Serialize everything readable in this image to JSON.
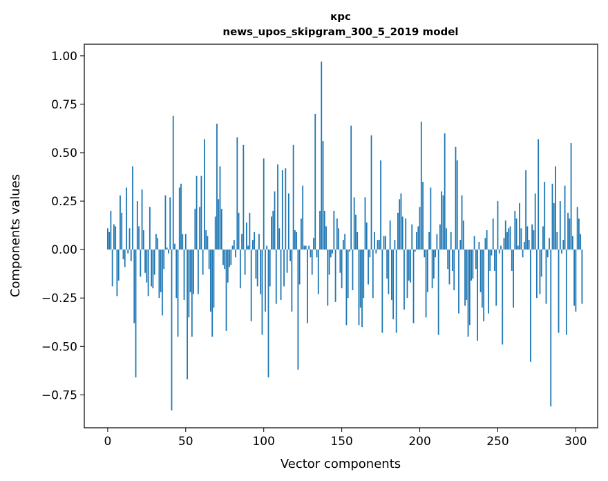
{
  "chart_data": {
    "type": "bar",
    "title_line1": "крс",
    "title_line2": "news_upos_skipgram_300_5_2019 model",
    "xlabel": "Vector components",
    "ylabel": "Components values",
    "xlim": [
      -15,
      314
    ],
    "ylim": [
      -0.92,
      1.06
    ],
    "xticks": [
      0,
      50,
      100,
      150,
      200,
      250,
      300
    ],
    "xtick_labels": [
      "0",
      "50",
      "100",
      "150",
      "200",
      "250",
      "300"
    ],
    "yticks": [
      -0.75,
      -0.5,
      -0.25,
      0.0,
      0.25,
      0.5,
      0.75,
      1.0
    ],
    "ytick_labels": [
      "−0.75",
      "−0.50",
      "−0.25",
      "0.00",
      "0.25",
      "0.50",
      "0.75",
      "1.00"
    ],
    "bar_color": "#1f77b4",
    "values": [
      0.11,
      0.09,
      0.2,
      -0.19,
      0.13,
      0.12,
      -0.24,
      -0.16,
      0.28,
      0.19,
      -0.05,
      -0.09,
      0.32,
      -0.02,
      0.11,
      -0.06,
      0.43,
      -0.38,
      -0.66,
      0.25,
      0.12,
      -0.14,
      0.31,
      0.1,
      -0.12,
      -0.17,
      -0.24,
      0.22,
      -0.19,
      -0.2,
      -0.13,
      0.08,
      0.06,
      -0.25,
      -0.22,
      -0.34,
      -0.1,
      0.28,
      0.01,
      -0.02,
      0.27,
      -0.83,
      0.69,
      0.03,
      -0.25,
      -0.45,
      0.32,
      0.34,
      0.08,
      -0.26,
      0.08,
      -0.67,
      -0.35,
      -0.22,
      -0.45,
      -0.23,
      0.21,
      0.38,
      -0.23,
      0.22,
      0.38,
      -0.13,
      0.57,
      0.1,
      0.07,
      -0.1,
      -0.32,
      -0.45,
      -0.3,
      0.17,
      0.65,
      0.26,
      0.43,
      0.21,
      -0.08,
      -0.1,
      -0.42,
      -0.17,
      -0.09,
      -0.08,
      0.02,
      0.05,
      -0.04,
      0.58,
      0.19,
      -0.2,
      0.08,
      0.54,
      -0.13,
      0.14,
      0.02,
      0.19,
      -0.37,
      0.05,
      0.09,
      -0.15,
      -0.19,
      0.08,
      -0.23,
      -0.44,
      0.47,
      -0.32,
      0.02,
      -0.66,
      -0.19,
      0.17,
      0.2,
      0.3,
      -0.28,
      0.44,
      0.11,
      -0.26,
      0.41,
      -0.19,
      0.42,
      -0.12,
      0.29,
      -0.06,
      -0.32,
      0.54,
      0.1,
      0.09,
      -0.62,
      -0.18,
      0.16,
      0.33,
      0.02,
      0.02,
      -0.38,
      0.02,
      -0.04,
      -0.13,
      0.06,
      0.7,
      -0.04,
      -0.23,
      0.2,
      0.97,
      0.56,
      0.2,
      0.12,
      -0.29,
      -0.13,
      -0.04,
      -0.02,
      0.2,
      -0.27,
      0.16,
      0.11,
      -0.12,
      -0.2,
      0.05,
      0.08,
      -0.39,
      -0.25,
      -0.01,
      0.64,
      -0.21,
      0.27,
      0.18,
      0.09,
      -0.39,
      -0.3,
      -0.4,
      -0.25,
      0.27,
      0.14,
      -0.18,
      -0.04,
      0.59,
      -0.25,
      0.09,
      -0.02,
      0.05,
      0.05,
      0.46,
      -0.43,
      0.07,
      0.07,
      -0.15,
      -0.23,
      0.15,
      -0.26,
      -0.36,
      0.05,
      -0.43,
      0.19,
      0.26,
      0.29,
      0.17,
      -0.31,
      0.16,
      -0.25,
      -0.16,
      -0.17,
      0.13,
      -0.38,
      -0.01,
      0.09,
      0.12,
      0.22,
      0.66,
      0.35,
      -0.04,
      -0.35,
      -0.22,
      0.09,
      0.32,
      -0.2,
      -0.15,
      -0.04,
      0.08,
      -0.44,
      0.13,
      0.3,
      0.28,
      0.6,
      0.11,
      -0.1,
      -0.18,
      0.09,
      -0.11,
      -0.21,
      0.53,
      0.46,
      -0.33,
      0.05,
      0.28,
      0.15,
      -0.29,
      -0.26,
      -0.45,
      -0.39,
      -0.16,
      -0.15,
      0.07,
      -0.1,
      -0.47,
      0.04,
      -0.22,
      -0.3,
      -0.37,
      0.06,
      0.1,
      -0.33,
      -0.11,
      -0.03,
      0.16,
      -0.11,
      -0.29,
      0.25,
      -0.02,
      0.02,
      -0.49,
      0.06,
      0.15,
      0.09,
      0.11,
      0.12,
      -0.11,
      -0.3,
      0.2,
      0.16,
      0.02,
      0.24,
      0.11,
      -0.04,
      0.04,
      0.41,
      0.12,
      0.05,
      -0.58,
      0.13,
      0.1,
      0.29,
      -0.25,
      0.57,
      -0.23,
      -0.14,
      0.12,
      0.35,
      -0.28,
      -0.04,
      0.06,
      -0.81,
      0.34,
      0.24,
      0.43,
      0.09,
      -0.43,
      0.25,
      -0.02,
      0.05,
      0.33,
      -0.44,
      0.19,
      0.16,
      0.55,
      0.07,
      -0.29,
      -0.32,
      0.22,
      0.16,
      0.08,
      -0.28
    ]
  }
}
